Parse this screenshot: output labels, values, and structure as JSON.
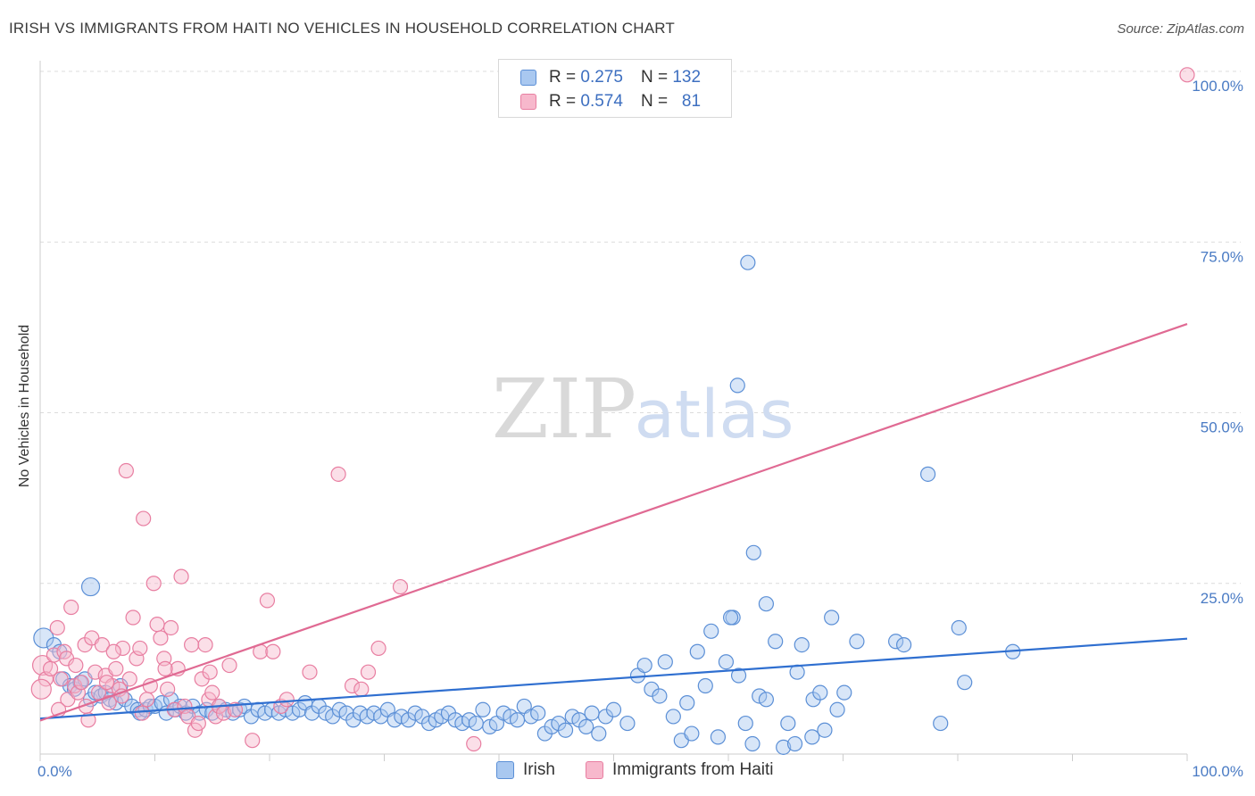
{
  "title": "IRISH VS IMMIGRANTS FROM HAITI NO VEHICLES IN HOUSEHOLD CORRELATION CHART",
  "source": "Source: ZipAtlas.com",
  "watermark": {
    "zip": "ZIP",
    "atlas": "atlas"
  },
  "legend": {
    "irish": {
      "r_label": "R =",
      "r_value": "0.275",
      "n_label": "N =",
      "n_value": "132"
    },
    "haiti": {
      "r_label": "R =",
      "r_value": "0.574",
      "n_label": "N =",
      "n_value": "81"
    }
  },
  "bottom_legend": {
    "irish": "Irish",
    "haiti": "Immigrants from Haiti"
  },
  "colors": {
    "irish_fill": "#a9c8f0",
    "irish_stroke": "#5b8fd6",
    "irish_line": "#2f6fd0",
    "haiti_fill": "#f7b8cc",
    "haiti_stroke": "#e87ea1",
    "haiti_line": "#e06a93",
    "grid": "#dcdcdc",
    "tick": "#4a7bc4"
  },
  "chart_data": {
    "type": "scatter",
    "title": "IRISH VS IMMIGRANTS FROM HAITI NO VEHICLES IN HOUSEHOLD CORRELATION CHART",
    "xlabel": "",
    "ylabel": "No Vehicles in Household",
    "xlim": [
      0,
      100
    ],
    "ylim": [
      0,
      100
    ],
    "x_ticks": [
      "0.0%",
      "100.0%"
    ],
    "y_ticks": [
      "25.0%",
      "50.0%",
      "75.0%",
      "100.0%"
    ],
    "y_tick_values": [
      25,
      50,
      75,
      100
    ],
    "grid": true,
    "legend_position": "top-center",
    "series": [
      {
        "name": "Irish",
        "trend": {
          "x": [
            0,
            100
          ],
          "y": [
            5.2,
            16.9
          ]
        },
        "points": [
          [
            0.3,
            17
          ],
          [
            1.2,
            16
          ],
          [
            1.7,
            15
          ],
          [
            2.0,
            11
          ],
          [
            2.6,
            10
          ],
          [
            3,
            9.5
          ],
          [
            3.5,
            10.5
          ],
          [
            3.9,
            11
          ],
          [
            4.4,
            8
          ],
          [
            4.8,
            9
          ],
          [
            5.3,
            8.5
          ],
          [
            5.7,
            9
          ],
          [
            6.1,
            8
          ],
          [
            6.6,
            7.5
          ],
          [
            7,
            10
          ],
          [
            7.4,
            8
          ],
          [
            8,
            7
          ],
          [
            8.5,
            6.5
          ],
          [
            8.7,
            6
          ],
          [
            9.2,
            6.5
          ],
          [
            9.6,
            7
          ],
          [
            10,
            7
          ],
          [
            10.6,
            7.5
          ],
          [
            11,
            6
          ],
          [
            11.4,
            8
          ],
          [
            11.8,
            6.5
          ],
          [
            12.2,
            7
          ],
          [
            12.7,
            6
          ],
          [
            13.3,
            7
          ],
          [
            13.9,
            6
          ],
          [
            14.5,
            6.5
          ],
          [
            15,
            6
          ],
          [
            15.6,
            7
          ],
          [
            16.2,
            6.5
          ],
          [
            16.8,
            6
          ],
          [
            17.4,
            6.5
          ],
          [
            17.8,
            7
          ],
          [
            18.4,
            5.5
          ],
          [
            19,
            6.5
          ],
          [
            19.6,
            6
          ],
          [
            20.2,
            6.5
          ],
          [
            20.8,
            6
          ],
          [
            21.4,
            6.5
          ],
          [
            22,
            6
          ],
          [
            22.6,
            6.5
          ],
          [
            23.1,
            7.5
          ],
          [
            23.7,
            6
          ],
          [
            24.3,
            7
          ],
          [
            24.9,
            6
          ],
          [
            25.5,
            5.5
          ],
          [
            26.1,
            6.5
          ],
          [
            26.7,
            6
          ],
          [
            27.3,
            5
          ],
          [
            27.9,
            6
          ],
          [
            28.5,
            5.5
          ],
          [
            29.1,
            6
          ],
          [
            29.7,
            5.5
          ],
          [
            30.3,
            6.5
          ],
          [
            30.9,
            5
          ],
          [
            31.5,
            5.5
          ],
          [
            32.1,
            5
          ],
          [
            32.7,
            6
          ],
          [
            33.3,
            5.5
          ],
          [
            33.9,
            4.5
          ],
          [
            34.5,
            5
          ],
          [
            35,
            5.5
          ],
          [
            35.6,
            6
          ],
          [
            36.2,
            5
          ],
          [
            36.8,
            4.5
          ],
          [
            37.4,
            5
          ],
          [
            38,
            4.5
          ],
          [
            38.6,
            6.5
          ],
          [
            39.2,
            4
          ],
          [
            39.8,
            4.5
          ],
          [
            40.4,
            6
          ],
          [
            41,
            5.5
          ],
          [
            41.6,
            5
          ],
          [
            42.2,
            7
          ],
          [
            42.8,
            5.5
          ],
          [
            43.4,
            6
          ],
          [
            44,
            3
          ],
          [
            44.6,
            4
          ],
          [
            45.2,
            4.5
          ],
          [
            45.8,
            3.5
          ],
          [
            46.4,
            5.5
          ],
          [
            47,
            5
          ],
          [
            47.6,
            4
          ],
          [
            48.1,
            6
          ],
          [
            48.7,
            3
          ],
          [
            49.3,
            5.5
          ],
          [
            50,
            6.5
          ],
          [
            51.2,
            4.5
          ],
          [
            52.1,
            11.5
          ],
          [
            52.7,
            13
          ],
          [
            53.3,
            9.5
          ],
          [
            54,
            8.5
          ],
          [
            54.5,
            13.5
          ],
          [
            55.2,
            5.5
          ],
          [
            55.9,
            2
          ],
          [
            56.4,
            7.5
          ],
          [
            56.8,
            3
          ],
          [
            57.3,
            15
          ],
          [
            58,
            10
          ],
          [
            58.5,
            18
          ],
          [
            59.1,
            2.5
          ],
          [
            59.8,
            13.5
          ],
          [
            60.4,
            20
          ],
          [
            60.9,
            11.5
          ],
          [
            61.5,
            4.5
          ],
          [
            62.1,
            1.5
          ],
          [
            62.7,
            8.5
          ],
          [
            63.3,
            8
          ],
          [
            64.1,
            16.5
          ],
          [
            64.8,
            1
          ],
          [
            65.2,
            4.5
          ],
          [
            66.4,
            16
          ],
          [
            67.4,
            8
          ],
          [
            69,
            20
          ],
          [
            71.2,
            16.5
          ],
          [
            60.2,
            20
          ],
          [
            60.8,
            54
          ],
          [
            61.7,
            72
          ],
          [
            62.2,
            29.5
          ],
          [
            63.3,
            22
          ],
          [
            66,
            12
          ],
          [
            68,
            9
          ],
          [
            69.5,
            6.5
          ],
          [
            70.1,
            9
          ],
          [
            74.6,
            16.5
          ],
          [
            75.3,
            16
          ],
          [
            77.4,
            41
          ],
          [
            78.5,
            4.5
          ],
          [
            80.1,
            18.5
          ],
          [
            80.6,
            10.5
          ],
          [
            84.8,
            15
          ],
          [
            65.8,
            1.5
          ],
          [
            67.3,
            2.5
          ],
          [
            68.4,
            3.5
          ]
        ]
      },
      {
        "name": "Immigrants from Haiti",
        "trend": {
          "x": [
            0,
            100
          ],
          "y": [
            4.9,
            63
          ]
        },
        "points": [
          [
            0.2,
            13
          ],
          [
            0.5,
            11
          ],
          [
            0.9,
            12.5
          ],
          [
            1.2,
            14.5
          ],
          [
            1.5,
            18.5
          ],
          [
            1.8,
            11
          ],
          [
            2.1,
            15
          ],
          [
            2.4,
            8
          ],
          [
            2.7,
            21.5
          ],
          [
            3,
            10
          ],
          [
            3.3,
            9
          ],
          [
            3.6,
            10.5
          ],
          [
            3.9,
            16
          ],
          [
            4.2,
            5
          ],
          [
            4.5,
            17
          ],
          [
            4.8,
            12
          ],
          [
            5.1,
            9
          ],
          [
            5.4,
            16
          ],
          [
            5.7,
            11.5
          ],
          [
            6,
            7.5
          ],
          [
            6.3,
            10
          ],
          [
            6.6,
            12.5
          ],
          [
            6.9,
            9.5
          ],
          [
            7.2,
            15.5
          ],
          [
            7.5,
            41.5
          ],
          [
            7.8,
            11
          ],
          [
            8.1,
            20
          ],
          [
            8.4,
            14
          ],
          [
            8.7,
            15.5
          ],
          [
            9,
            34.5
          ],
          [
            9.3,
            8
          ],
          [
            9.6,
            10
          ],
          [
            9.9,
            25
          ],
          [
            10.2,
            19
          ],
          [
            10.5,
            17
          ],
          [
            10.8,
            14
          ],
          [
            11.1,
            9.5
          ],
          [
            11.4,
            18.5
          ],
          [
            11.7,
            6.5
          ],
          [
            12,
            12.5
          ],
          [
            12.3,
            26
          ],
          [
            12.6,
            7
          ],
          [
            12.9,
            5.5
          ],
          [
            13.2,
            16
          ],
          [
            13.5,
            3.5
          ],
          [
            13.8,
            4.5
          ],
          [
            14.1,
            11
          ],
          [
            14.4,
            16
          ],
          [
            14.7,
            8
          ],
          [
            15,
            9
          ],
          [
            15.3,
            5.5
          ],
          [
            15.6,
            7
          ],
          [
            16,
            6
          ],
          [
            16.5,
            13
          ],
          [
            17,
            6.5
          ],
          [
            18.5,
            2
          ],
          [
            19.2,
            15
          ],
          [
            19.8,
            22.5
          ],
          [
            20.3,
            15
          ],
          [
            21,
            7
          ],
          [
            21.5,
            8
          ],
          [
            23.5,
            12
          ],
          [
            26,
            41
          ],
          [
            27.2,
            10
          ],
          [
            28,
            9.5
          ],
          [
            28.6,
            12
          ],
          [
            29.5,
            15.5
          ],
          [
            31.4,
            24.5
          ],
          [
            37.8,
            1.5
          ],
          [
            4,
            7
          ],
          [
            2.3,
            14
          ],
          [
            5.8,
            10.5
          ],
          [
            7.1,
            8.5
          ],
          [
            8.9,
            6
          ],
          [
            10.9,
            12.5
          ],
          [
            0.1,
            9.5
          ],
          [
            1.6,
            6.5
          ],
          [
            3.1,
            13
          ],
          [
            14.8,
            12
          ],
          [
            100,
            99.5
          ],
          [
            6.4,
            15
          ]
        ]
      }
    ]
  }
}
